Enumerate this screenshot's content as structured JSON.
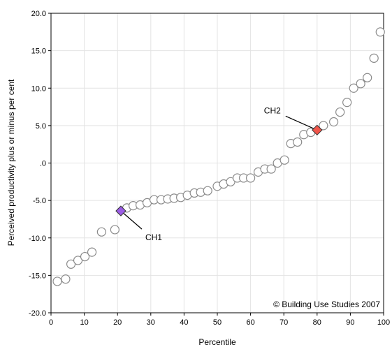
{
  "chart_data": {
    "type": "scatter",
    "title": "",
    "xlabel": "Percentile",
    "ylabel": "Perceived productivity plus or minus per cent",
    "xlim": [
      0,
      100
    ],
    "ylim": [
      -20,
      20
    ],
    "grid": true,
    "x_ticks": [
      0,
      10,
      20,
      30,
      40,
      50,
      60,
      70,
      80,
      90,
      100
    ],
    "x_tick_labels": [
      "0",
      "10",
      "20",
      "30",
      "40",
      "50",
      "60",
      "70",
      "80",
      "90",
      "100"
    ],
    "y_ticks": [
      20,
      15,
      10,
      5,
      0,
      -5,
      -10,
      -15,
      -20
    ],
    "y_tick_labels": [
      "20.0",
      "15.0",
      "10.0",
      "5.0",
      ".0",
      "-5.0",
      "-10.0",
      "-15.0",
      "-20.0"
    ],
    "points": [
      {
        "x": 1.9,
        "y": -15.8
      },
      {
        "x": 4.4,
        "y": -15.5
      },
      {
        "x": 6.0,
        "y": -13.5
      },
      {
        "x": 8.1,
        "y": -13.0
      },
      {
        "x": 10.2,
        "y": -12.5
      },
      {
        "x": 12.3,
        "y": -11.9
      },
      {
        "x": 15.2,
        "y": -9.2
      },
      {
        "x": 19.2,
        "y": -8.9
      },
      {
        "x": 22.8,
        "y": -6.0
      },
      {
        "x": 24.7,
        "y": -5.7
      },
      {
        "x": 26.8,
        "y": -5.6
      },
      {
        "x": 28.9,
        "y": -5.3
      },
      {
        "x": 31.0,
        "y": -4.9
      },
      {
        "x": 33.1,
        "y": -4.9
      },
      {
        "x": 35.1,
        "y": -4.8
      },
      {
        "x": 37.0,
        "y": -4.7
      },
      {
        "x": 39.0,
        "y": -4.6
      },
      {
        "x": 41.0,
        "y": -4.3
      },
      {
        "x": 43.1,
        "y": -4.0
      },
      {
        "x": 45.0,
        "y": -3.9
      },
      {
        "x": 47.1,
        "y": -3.7
      },
      {
        "x": 50.0,
        "y": -3.1
      },
      {
        "x": 51.9,
        "y": -2.8
      },
      {
        "x": 54.0,
        "y": -2.5
      },
      {
        "x": 56.0,
        "y": -2.0
      },
      {
        "x": 57.9,
        "y": -2.0
      },
      {
        "x": 60.0,
        "y": -2.0
      },
      {
        "x": 62.3,
        "y": -1.2
      },
      {
        "x": 64.3,
        "y": -0.8
      },
      {
        "x": 66.2,
        "y": -0.8
      },
      {
        "x": 68.1,
        "y": 0.0
      },
      {
        "x": 70.2,
        "y": 0.4
      },
      {
        "x": 72.1,
        "y": 2.6
      },
      {
        "x": 74.1,
        "y": 2.8
      },
      {
        "x": 76.0,
        "y": 3.8
      },
      {
        "x": 78.1,
        "y": 4.1
      },
      {
        "x": 81.9,
        "y": 5.0
      },
      {
        "x": 85.0,
        "y": 5.5
      },
      {
        "x": 86.9,
        "y": 6.8
      },
      {
        "x": 89.0,
        "y": 8.1
      },
      {
        "x": 91.0,
        "y": 10.0
      },
      {
        "x": 93.1,
        "y": 10.6
      },
      {
        "x": 95.1,
        "y": 11.4
      },
      {
        "x": 97.1,
        "y": 14.0
      },
      {
        "x": 99.0,
        "y": 17.5
      }
    ],
    "highlighted": [
      {
        "label": "CH1",
        "x": 21.0,
        "y": -6.4,
        "color": "#9b5de5"
      },
      {
        "label": "CH2",
        "x": 80.0,
        "y": 4.4,
        "color": "#f0554a"
      }
    ],
    "copyright": "© Building Use Studies 2007"
  }
}
